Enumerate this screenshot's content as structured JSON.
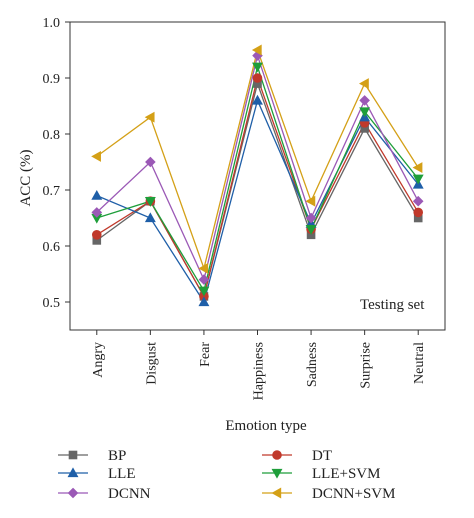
{
  "chart_data": {
    "type": "line",
    "xlabel": "Emotion type",
    "ylabel": "ACC (%)",
    "ylim": [
      0.45,
      1.0
    ],
    "yticks": [
      "0.5",
      "0.6",
      "0.7",
      "0.8",
      "0.9",
      "1.0"
    ],
    "categories": [
      "Angry",
      "Disgust",
      "Fear",
      "Happiness",
      "Sadness",
      "Surprise",
      "Neutral"
    ],
    "annotation": "Testing set",
    "grid": false,
    "legend_position": "bottom",
    "series": [
      {
        "name": "BP",
        "color": "#666666",
        "marker": "square",
        "values": [
          0.61,
          0.68,
          0.51,
          0.89,
          0.62,
          0.81,
          0.65
        ]
      },
      {
        "name": "DT",
        "color": "#c0392b",
        "marker": "circle",
        "values": [
          0.62,
          0.68,
          0.51,
          0.9,
          0.63,
          0.82,
          0.66
        ]
      },
      {
        "name": "LLE",
        "color": "#1f5fa8",
        "marker": "triangle-up",
        "values": [
          0.69,
          0.65,
          0.5,
          0.86,
          0.64,
          0.83,
          0.71
        ]
      },
      {
        "name": "LLE+SVM",
        "color": "#1e9e3a",
        "marker": "triangle-down",
        "values": [
          0.65,
          0.68,
          0.52,
          0.92,
          0.63,
          0.84,
          0.72
        ]
      },
      {
        "name": "DCNN",
        "color": "#9b59b6",
        "marker": "diamond",
        "values": [
          0.66,
          0.75,
          0.54,
          0.94,
          0.65,
          0.86,
          0.68
        ]
      },
      {
        "name": "DCNN+SVM",
        "color": "#d4a017",
        "marker": "triangle-left",
        "values": [
          0.76,
          0.83,
          0.56,
          0.95,
          0.68,
          0.89,
          0.74
        ]
      }
    ]
  }
}
